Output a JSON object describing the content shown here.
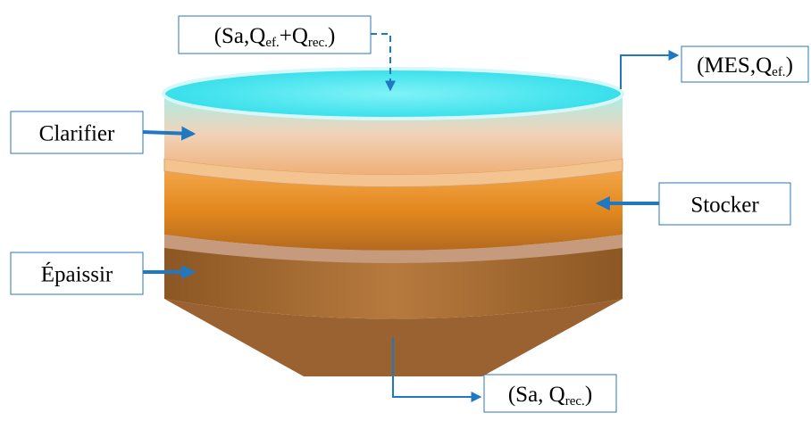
{
  "inflow": {
    "parts": [
      "(Sa,Q",
      "ef.",
      "+Q",
      "rec.",
      ")"
    ]
  },
  "effluent": {
    "parts": [
      "(MES,Q",
      "ef.",
      ")"
    ]
  },
  "clarify": {
    "parts": [
      "Clarifier"
    ]
  },
  "store": {
    "parts": [
      "Stocker"
    ]
  },
  "thicken": {
    "parts": [
      "Épaissir"
    ]
  },
  "underflow": {
    "parts": [
      "(Sa, Q",
      "rec.",
      ")"
    ]
  }
}
